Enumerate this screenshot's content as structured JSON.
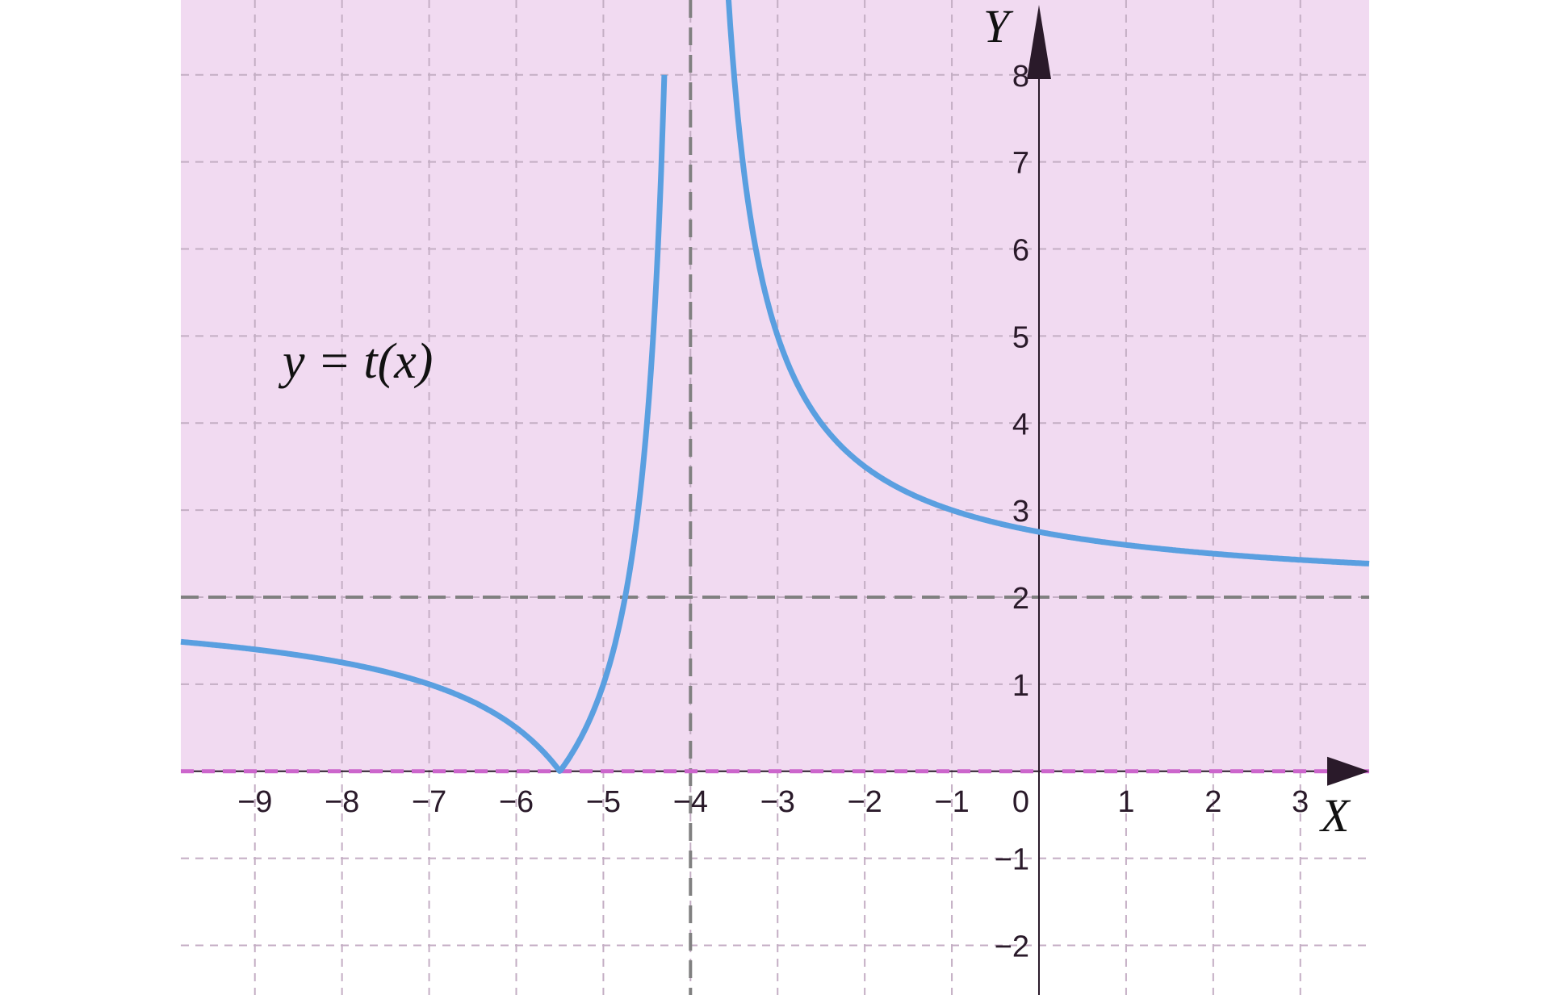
{
  "chart_data": {
    "type": "line",
    "title": "",
    "xlabel": "X",
    "ylabel": "Y",
    "annotation": "y = t(x)",
    "xlim": [
      -9.85,
      3.79
    ],
    "ylim": [
      -2.57,
      8.86
    ],
    "grid": true,
    "x_ticks": [
      "−9",
      "−8",
      "−7",
      "−6",
      "−5",
      "−4",
      "−3",
      "−2",
      "−1",
      "1",
      "2",
      "3"
    ],
    "y_ticks": [
      "−2",
      "−1",
      "1",
      "2",
      "3",
      "4",
      "5",
      "6",
      "7",
      "8"
    ],
    "origin_label": "0",
    "x_tick_values": [
      -9,
      -8,
      -7,
      -6,
      -5,
      -4,
      -3,
      -2,
      -1,
      1,
      2,
      3
    ],
    "y_tick_values": [
      -2,
      -1,
      1,
      2,
      3,
      4,
      5,
      6,
      7,
      8
    ],
    "shaded_region": "y >= 0",
    "asymptotes": {
      "vertical_x": -4,
      "horizontal_y": 2
    },
    "series": [
      {
        "function": "|2 + 3/(x+4)|",
        "zero_at": -5.5,
        "value_at_0": 2.75,
        "sample_points": [
          [
            -9.85,
            1.49
          ],
          [
            -8,
            1.25
          ],
          [
            -7,
            1.0
          ],
          [
            -6,
            0.5
          ],
          [
            -5.5,
            0
          ],
          [
            -5,
            1
          ],
          [
            -4.5,
            4
          ],
          [
            -3.5,
            8
          ],
          [
            -3,
            5
          ],
          [
            -2,
            3.5
          ],
          [
            -1,
            3
          ],
          [
            0,
            2.75
          ],
          [
            1,
            2.6
          ],
          [
            2,
            2.5
          ],
          [
            3,
            2.43
          ],
          [
            3.79,
            2.39
          ]
        ]
      }
    ],
    "colors": {
      "curve": "#5a9fe0",
      "shade": "#f1daf1",
      "asymptote": "#808080",
      "grid": "#c4aec4",
      "axis": "#2a1a2a",
      "x_axis_overlay": "#cc66cc"
    }
  }
}
